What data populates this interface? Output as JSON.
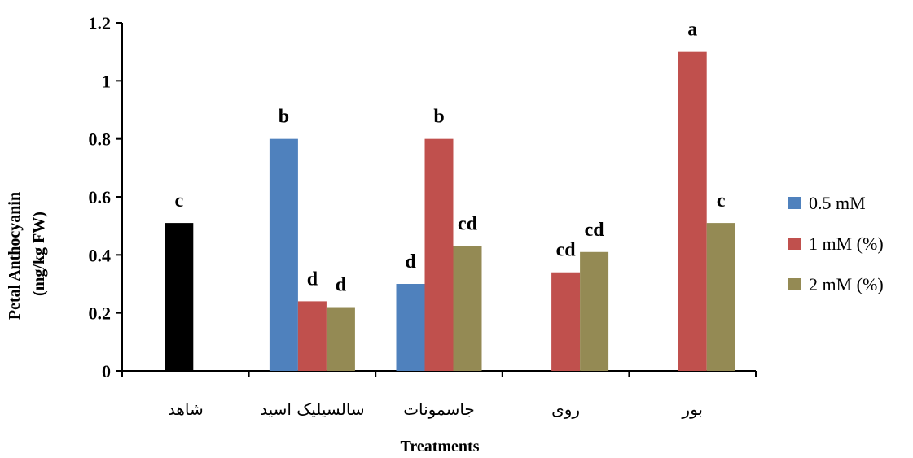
{
  "chart_data": {
    "type": "bar",
    "xlabel": "Treatments",
    "ylabel_line1": "Petal Anthocyanin",
    "ylabel_line2": "(mg/kg FW)",
    "ylim": [
      0,
      1.2
    ],
    "yticks": [
      "0",
      "0.2",
      "0.4",
      "0.6",
      "0.8",
      "1",
      "1.2"
    ],
    "categories": [
      "شاهد",
      "سالسیلیک اسید",
      "جاسمونات",
      "روی",
      "بور"
    ],
    "control": {
      "value": 0.51,
      "label": "c",
      "color": "#000000"
    },
    "series": [
      {
        "name": "0.5 mM",
        "color": "#4F81BD",
        "values": [
          null,
          0.8,
          0.3,
          null,
          null
        ],
        "labels": [
          null,
          "b",
          "d",
          null,
          null
        ]
      },
      {
        "name": "1 mM (%)",
        "color": "#C0504D",
        "values": [
          null,
          0.24,
          0.8,
          0.34,
          1.1
        ],
        "labels": [
          null,
          "d",
          "b",
          "cd",
          "a"
        ]
      },
      {
        "name": "2 mM (%)",
        "color": "#948A54",
        "values": [
          null,
          0.22,
          0.43,
          0.41,
          0.51
        ],
        "labels": [
          null,
          "d",
          "cd",
          "cd",
          "c"
        ]
      }
    ],
    "legend_position": "right",
    "grid": false
  }
}
